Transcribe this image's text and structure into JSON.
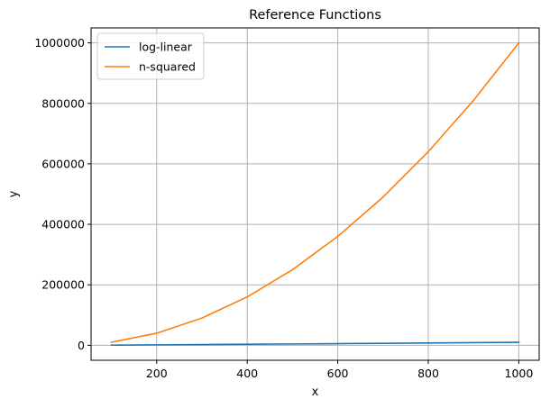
{
  "chart_data": {
    "type": "line",
    "title": "Reference Functions",
    "xlabel": "x",
    "ylabel": "y",
    "x": [
      100,
      200,
      300,
      400,
      500,
      600,
      700,
      800,
      900,
      1000
    ],
    "series": [
      {
        "name": "log-linear",
        "color": "#1f77b4",
        "values": [
          664,
          1529,
          2469,
          3458,
          4483,
          5537,
          6615,
          7715,
          8832,
          9966
        ]
      },
      {
        "name": "n-squared",
        "color": "#ff7f0e",
        "values": [
          10000,
          40000,
          90000,
          160000,
          250000,
          360000,
          490000,
          640000,
          810000,
          1000000
        ]
      }
    ],
    "xlim": [
      55,
      1045
    ],
    "ylim": [
      -49500,
      1049500
    ],
    "xticks": [
      200,
      400,
      600,
      800,
      1000
    ],
    "xtick_labels": [
      "200",
      "400",
      "600",
      "800",
      "1000"
    ],
    "yticks": [
      0,
      200000,
      400000,
      600000,
      800000,
      1000000
    ],
    "ytick_labels": [
      "0",
      "200000",
      "400000",
      "600000",
      "800000",
      "1000000"
    ],
    "grid": true,
    "legend_position": "top-left"
  }
}
